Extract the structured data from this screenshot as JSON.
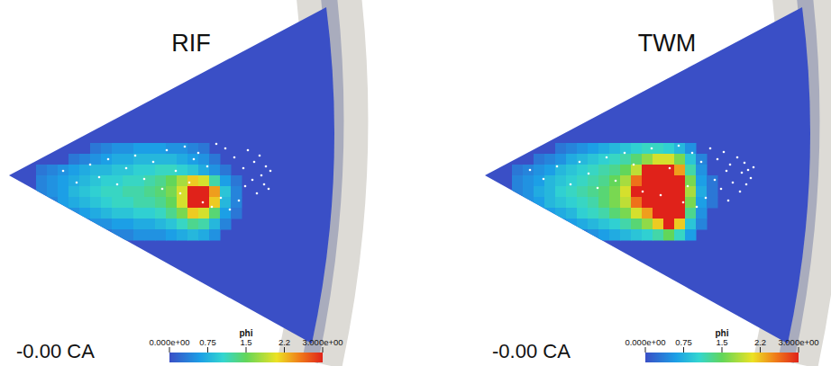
{
  "chart_data": [
    {
      "type": "heatmap",
      "title": "RIF",
      "annotation": "-0.00 CA",
      "tick_labels": false,
      "xlim": [
        0,
        390
      ],
      "ylim": [
        -195,
        195
      ],
      "background": 0,
      "x": [
        36,
        48,
        60,
        72,
        84,
        96,
        108,
        120,
        132,
        144,
        156,
        168,
        180,
        192,
        204,
        216,
        228,
        240,
        252,
        264
      ],
      "y": [
        30,
        18,
        6,
        -6,
        -18,
        -30,
        -42,
        -54,
        -66
      ],
      "z": [
        [
          null,
          null,
          null,
          null,
          null,
          0.3,
          0.4,
          0.5,
          0.5,
          0.6,
          0.6,
          0.6,
          0.5,
          0.5,
          0.4,
          0.3,
          null,
          null,
          null,
          null
        ],
        [
          null,
          null,
          null,
          0.3,
          0.4,
          0.5,
          0.6,
          0.7,
          0.7,
          0.8,
          0.8,
          0.8,
          0.8,
          0.7,
          0.6,
          0.5,
          0.3,
          null,
          null,
          null
        ],
        [
          0.3,
          0.4,
          0.5,
          0.6,
          0.7,
          0.8,
          0.8,
          0.9,
          0.9,
          1.0,
          1.0,
          1.1,
          1.1,
          1.0,
          0.9,
          0.7,
          0.5,
          0.3,
          null,
          null
        ],
        [
          0.4,
          0.5,
          0.6,
          0.7,
          0.8,
          0.9,
          1.0,
          1.0,
          1.1,
          1.1,
          1.2,
          1.3,
          1.5,
          1.8,
          2.2,
          2.0,
          1.2,
          0.6,
          0.3,
          null
        ],
        [
          0.4,
          0.5,
          0.6,
          0.8,
          0.9,
          1.0,
          1.1,
          1.1,
          1.2,
          1.2,
          1.3,
          1.4,
          1.6,
          2.0,
          3.0,
          3.0,
          2.4,
          0.9,
          0.4,
          null
        ],
        [
          0.3,
          0.4,
          0.6,
          0.7,
          0.8,
          0.9,
          1.0,
          1.1,
          1.1,
          1.2,
          1.2,
          1.3,
          1.5,
          2.0,
          3.0,
          3.0,
          2.2,
          0.8,
          0.4,
          null
        ],
        [
          null,
          0.3,
          0.4,
          0.5,
          0.6,
          0.7,
          0.8,
          0.9,
          0.9,
          1.0,
          1.0,
          1.1,
          1.3,
          1.6,
          2.2,
          2.0,
          1.4,
          0.6,
          0.3,
          null
        ],
        [
          null,
          null,
          null,
          0.3,
          0.4,
          0.5,
          0.5,
          0.6,
          0.6,
          0.7,
          0.7,
          0.8,
          0.9,
          1.1,
          1.3,
          1.2,
          0.8,
          0.4,
          null,
          null
        ],
        [
          null,
          null,
          null,
          null,
          null,
          0.3,
          0.3,
          0.4,
          0.4,
          0.5,
          0.5,
          0.5,
          0.6,
          0.7,
          0.8,
          0.7,
          0.5,
          null,
          null,
          null
        ]
      ],
      "particles": {
        "x": [
          60,
          75,
          90,
          100,
          110,
          120,
          130,
          140,
          150,
          160,
          170,
          175,
          185,
          190,
          195,
          200,
          205,
          210,
          215,
          220,
          225,
          230,
          235,
          240,
          245,
          250,
          255,
          260,
          262,
          265,
          270,
          272,
          275,
          278,
          280,
          283,
          285,
          288,
          290
        ],
        "y": [
          5,
          -8,
          12,
          -2,
          18,
          -10,
          8,
          22,
          -4,
          15,
          -15,
          28,
          5,
          -20,
          32,
          -8,
          18,
          25,
          -30,
          10,
          -35,
          35,
          -25,
          30,
          -38,
          20,
          -28,
          8,
          -12,
          28,
          -5,
          15,
          -20,
          22,
          0,
          -10,
          10,
          -15,
          5
        ]
      },
      "colorbar": {
        "label": "phi",
        "range": [
          0,
          3
        ],
        "ticks": [
          {
            "value": 0,
            "label": "0.000e+00"
          },
          0.75,
          1.5,
          {
            "value": 2.25,
            "label": "2.2"
          },
          {
            "value": 3,
            "label": "3.000e+00"
          }
        ]
      }
    },
    {
      "type": "heatmap",
      "title": "TWM",
      "annotation": "-0.00 CA",
      "tick_labels": false,
      "xlim": [
        0,
        390
      ],
      "ylim": [
        -195,
        195
      ],
      "background": 0,
      "x": [
        36,
        48,
        60,
        72,
        84,
        96,
        108,
        120,
        132,
        144,
        156,
        168,
        180,
        192,
        204,
        216,
        228,
        240,
        252,
        264
      ],
      "y": [
        30,
        18,
        6,
        -6,
        -18,
        -30,
        -42,
        -54,
        -66
      ],
      "z": [
        [
          null,
          null,
          null,
          null,
          0.3,
          0.4,
          0.5,
          0.6,
          0.7,
          0.8,
          0.9,
          1.0,
          1.1,
          1.1,
          1.0,
          0.8,
          0.5,
          null,
          null,
          null
        ],
        [
          null,
          null,
          0.3,
          0.4,
          0.5,
          0.7,
          0.8,
          0.9,
          1.0,
          1.1,
          1.2,
          1.4,
          1.7,
          2.0,
          2.0,
          1.6,
          0.9,
          0.4,
          null,
          null
        ],
        [
          0.3,
          0.4,
          0.5,
          0.6,
          0.8,
          0.9,
          1.0,
          1.1,
          1.2,
          1.3,
          1.5,
          1.9,
          3.0,
          3.0,
          3.0,
          2.4,
          1.2,
          0.5,
          null,
          null
        ],
        [
          0.4,
          0.5,
          0.6,
          0.8,
          0.9,
          1.0,
          1.1,
          1.2,
          1.3,
          1.5,
          1.8,
          2.6,
          3.0,
          3.0,
          3.0,
          3.0,
          1.6,
          0.6,
          0.3,
          null
        ],
        [
          0.4,
          0.5,
          0.7,
          0.8,
          1.0,
          1.1,
          1.2,
          1.3,
          1.4,
          1.6,
          2.0,
          3.0,
          3.0,
          3.0,
          3.0,
          3.0,
          1.8,
          0.7,
          0.3,
          null
        ],
        [
          0.3,
          0.5,
          0.6,
          0.8,
          0.9,
          1.0,
          1.1,
          1.2,
          1.4,
          1.6,
          1.9,
          2.6,
          3.0,
          3.0,
          3.0,
          3.0,
          1.6,
          0.6,
          0.3,
          null
        ],
        [
          null,
          0.3,
          0.5,
          0.6,
          0.7,
          0.8,
          1.0,
          1.1,
          1.2,
          1.4,
          1.6,
          2.0,
          2.4,
          3.0,
          3.0,
          3.0,
          1.3,
          0.5,
          null,
          null
        ],
        [
          null,
          null,
          null,
          0.4,
          0.5,
          0.6,
          0.7,
          0.8,
          0.9,
          1.0,
          1.2,
          1.4,
          1.7,
          2.2,
          3.0,
          2.2,
          0.9,
          0.4,
          null,
          null
        ],
        [
          null,
          null,
          null,
          null,
          null,
          0.3,
          0.4,
          0.5,
          0.6,
          0.7,
          0.8,
          0.9,
          1.0,
          1.2,
          1.5,
          1.1,
          0.6,
          null,
          null,
          null
        ]
      ],
      "particles": {
        "x": [
          50,
          65,
          80,
          95,
          105,
          115,
          125,
          135,
          145,
          155,
          165,
          175,
          185,
          195,
          205,
          215,
          220,
          225,
          230,
          235,
          240,
          245,
          250,
          255,
          258,
          262,
          265,
          268,
          270,
          272,
          275,
          280,
          283,
          285,
          288,
          290,
          292,
          295,
          298
        ],
        "y": [
          6,
          -4,
          10,
          -10,
          15,
          2,
          -14,
          20,
          -6,
          25,
          12,
          -18,
          30,
          -22,
          8,
          33,
          -30,
          -12,
          25,
          -35,
          15,
          -25,
          30,
          -5,
          18,
          -15,
          26,
          5,
          -28,
          12,
          -8,
          20,
          -18,
          3,
          14,
          -10,
          6,
          -3,
          9
        ]
      },
      "colorbar": {
        "label": "phi",
        "range": [
          0,
          3
        ],
        "ticks": [
          {
            "value": 0,
            "label": "0.000e+00"
          },
          0.75,
          1.5,
          {
            "value": 2.25,
            "label": "2.2"
          },
          {
            "value": 3,
            "label": "3.000e+00"
          }
        ]
      }
    }
  ]
}
